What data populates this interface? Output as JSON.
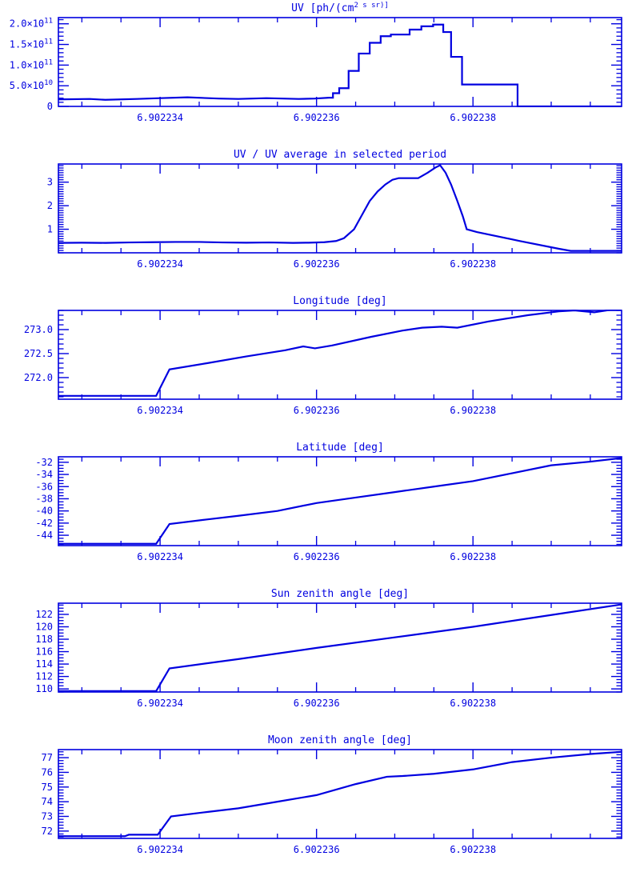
{
  "page": {
    "background": "#ffffff"
  },
  "style": {
    "plot_color": "#0000E0"
  },
  "x_axis": {
    "range": [
      6.9022327,
      6.9022399
    ],
    "major_ticks": [
      {
        "v": 6.902234,
        "label": "6.902234"
      },
      {
        "v": 6.902236,
        "label": "6.902236"
      },
      {
        "v": 6.902238,
        "label": "6.902238"
      }
    ],
    "minor_step": 5e-07,
    "grid": false,
    "legend": "none"
  },
  "chart_data": [
    {
      "type": "line",
      "title": "UV [ph/(cm^2 s sr)]",
      "xlabel": "",
      "ylabel": "",
      "y_axis": {
        "range": [
          0,
          215000000000.0
        ],
        "major_ticks": [
          {
            "v": 0,
            "label": "0"
          },
          {
            "v": 50000000000.0,
            "label": "5.0×10^10"
          },
          {
            "v": 100000000000.0,
            "label": "1.0×10^11"
          },
          {
            "v": 150000000000.0,
            "label": "1.5×10^11"
          },
          {
            "v": 200000000000.0,
            "label": "2.0×10^11"
          }
        ],
        "minor_step": 10000000000.0
      },
      "series": [
        {
          "name": "UV",
          "points": [
            [
              6.9022327,
              17000000000.0
            ],
            [
              6.9022331,
              18000000000.0
            ],
            [
              6.9022333,
              16000000000.0
            ],
            [
              6.9022337,
              18000000000.0
            ],
            [
              6.902234,
              20000000000.0
            ],
            [
              6.90223435,
              22000000000.0
            ],
            [
              6.90223475,
              19000000000.0
            ],
            [
              6.902235,
              18000000000.0
            ],
            [
              6.90223536,
              20000000000.0
            ],
            [
              6.90223577,
              18000000000.0
            ],
            [
              6.90223598,
              19000000000.0
            ],
            [
              6.90223616,
              21000000000.0
            ],
            [
              6.90223621,
              21000000000.0
            ],
            [
              6.90223621,
              32000000000.0
            ],
            [
              6.90223629,
              32000000000.0
            ],
            [
              6.90223629,
              44000000000.0
            ],
            [
              6.90223641,
              44000000000.0
            ],
            [
              6.90223641,
              86000000000.0
            ],
            [
              6.90223654,
              86000000000.0
            ],
            [
              6.90223654,
              128000000000.0
            ],
            [
              6.90223668,
              128000000000.0
            ],
            [
              6.90223668,
              154000000000.0
            ],
            [
              6.90223682,
              154000000000.0
            ],
            [
              6.90223682,
              170000000000.0
            ],
            [
              6.90223695,
              170000000000.0
            ],
            [
              6.90223695,
              174000000000.0
            ],
            [
              6.90223719,
              174000000000.0
            ],
            [
              6.90223719,
              186000000000.0
            ],
            [
              6.90223734,
              186000000000.0
            ],
            [
              6.90223734,
              194000000000.0
            ],
            [
              6.90223749,
              194000000000.0
            ],
            [
              6.90223749,
              198000000000.0
            ],
            [
              6.90223762,
              198000000000.0
            ],
            [
              6.90223762,
              180000000000.0
            ],
            [
              6.90223772,
              180000000000.0
            ],
            [
              6.90223772,
              120000000000.0
            ],
            [
              6.90223786,
              120000000000.0
            ],
            [
              6.90223786,
              53000000000.0
            ],
            [
              6.90223857,
              53000000000.0
            ],
            [
              6.90223857,
              0
            ],
            [
              6.9022399,
              0
            ]
          ]
        }
      ]
    },
    {
      "type": "line",
      "title": "UV / UV average in selected period",
      "xlabel": "",
      "ylabel": "",
      "y_axis": {
        "range": [
          0,
          3.77
        ],
        "major_ticks": [
          {
            "v": 1,
            "label": "1"
          },
          {
            "v": 2,
            "label": "2"
          },
          {
            "v": 3,
            "label": "3"
          }
        ],
        "minor_step": 0.1
      },
      "series": [
        {
          "name": "UV ratio",
          "points": [
            [
              6.9022327,
              0.42
            ],
            [
              6.902233,
              0.43
            ],
            [
              6.9022333,
              0.42
            ],
            [
              6.9022336,
              0.44
            ],
            [
              6.9022339,
              0.45
            ],
            [
              6.9022342,
              0.46
            ],
            [
              6.9022345,
              0.46
            ],
            [
              6.9022348,
              0.44
            ],
            [
              6.9022351,
              0.43
            ],
            [
              6.9022354,
              0.44
            ],
            [
              6.9022357,
              0.42
            ],
            [
              6.9022359,
              0.43
            ],
            [
              6.9022361,
              0.45
            ],
            [
              6.90223625,
              0.5
            ],
            [
              6.90223635,
              0.62
            ],
            [
              6.90223648,
              1.0
            ],
            [
              6.90223658,
              1.6
            ],
            [
              6.90223668,
              2.2
            ],
            [
              6.90223678,
              2.6
            ],
            [
              6.90223688,
              2.9
            ],
            [
              6.90223697,
              3.1
            ],
            [
              6.90223705,
              3.17
            ],
            [
              6.9022373,
              3.17
            ],
            [
              6.90223742,
              3.4
            ],
            [
              6.90223752,
              3.62
            ],
            [
              6.90223758,
              3.72
            ],
            [
              6.90223765,
              3.4
            ],
            [
              6.90223772,
              2.9
            ],
            [
              6.9022378,
              2.2
            ],
            [
              6.90223787,
              1.55
            ],
            [
              6.90223792,
              1.0
            ],
            [
              6.90223805,
              0.88
            ],
            [
              6.9022386,
              0.5
            ],
            [
              6.9022391,
              0.17
            ],
            [
              6.90223925,
              0.08
            ],
            [
              6.9022399,
              0.08
            ]
          ]
        }
      ]
    },
    {
      "type": "line",
      "title": "Longitude [deg]",
      "xlabel": "",
      "ylabel": "",
      "y_axis": {
        "range": [
          271.55,
          273.4
        ],
        "major_ticks": [
          {
            "v": 272.0,
            "label": "272.0"
          },
          {
            "v": 272.5,
            "label": "272.5"
          },
          {
            "v": 273.0,
            "label": "273.0"
          }
        ],
        "minor_step": 0.1
      },
      "series": [
        {
          "name": "Longitude",
          "points": [
            [
              6.9022327,
              271.62
            ],
            [
              6.90223395,
              271.62
            ],
            [
              6.90223412,
              272.17
            ],
            [
              6.9022346,
              272.3
            ],
            [
              6.9022351,
              272.44
            ],
            [
              6.9022356,
              272.57
            ],
            [
              6.90223583,
              272.65
            ],
            [
              6.90223598,
              272.61
            ],
            [
              6.9022362,
              272.67
            ],
            [
              6.9022367,
              272.85
            ],
            [
              6.9022371,
              272.98
            ],
            [
              6.90223735,
              273.04
            ],
            [
              6.9022376,
              273.06
            ],
            [
              6.9022378,
              273.04
            ],
            [
              6.9022382,
              273.17
            ],
            [
              6.9022387,
              273.3
            ],
            [
              6.9022391,
              273.38
            ],
            [
              6.9022393,
              273.4
            ],
            [
              6.90223955,
              273.36
            ],
            [
              6.90223975,
              273.41
            ],
            [
              6.9022399,
              273.42
            ]
          ]
        }
      ]
    },
    {
      "type": "line",
      "title": "Latitude [deg]",
      "xlabel": "",
      "ylabel": "",
      "y_axis": {
        "range": [
          -45.7,
          -31.1
        ],
        "major_ticks": [
          {
            "v": -44,
            "label": "-44"
          },
          {
            "v": -42,
            "label": "-42"
          },
          {
            "v": -40,
            "label": "-40"
          },
          {
            "v": -38,
            "label": "-38"
          },
          {
            "v": -36,
            "label": "-36"
          },
          {
            "v": -34,
            "label": "-34"
          },
          {
            "v": -32,
            "label": "-32"
          }
        ],
        "minor_step": 0.5
      },
      "series": [
        {
          "name": "Latitude",
          "points": [
            [
              6.9022327,
              -45.4
            ],
            [
              6.90223395,
              -45.4
            ],
            [
              6.90223412,
              -42.15
            ],
            [
              6.9022346,
              -41.4
            ],
            [
              6.902235,
              -40.8
            ],
            [
              6.9022355,
              -40.0
            ],
            [
              6.902236,
              -38.7
            ],
            [
              6.9022365,
              -37.8
            ],
            [
              6.902237,
              -36.9
            ],
            [
              6.9022375,
              -36.0
            ],
            [
              6.902238,
              -35.1
            ],
            [
              6.9022385,
              -33.8
            ],
            [
              6.902239,
              -32.5
            ],
            [
              6.9022395,
              -31.9
            ],
            [
              6.9022399,
              -31.3
            ]
          ]
        }
      ]
    },
    {
      "type": "line",
      "title": "Sun zenith angle [deg]",
      "xlabel": "",
      "ylabel": "",
      "y_axis": {
        "range": [
          109.5,
          123.8
        ],
        "major_ticks": [
          {
            "v": 110,
            "label": "110"
          },
          {
            "v": 112,
            "label": "112"
          },
          {
            "v": 114,
            "label": "114"
          },
          {
            "v": 116,
            "label": "116"
          },
          {
            "v": 118,
            "label": "118"
          },
          {
            "v": 120,
            "label": "120"
          },
          {
            "v": 122,
            "label": "122"
          }
        ],
        "minor_step": 0.5
      },
      "series": [
        {
          "name": "Sun zenith angle",
          "points": [
            [
              6.9022327,
              109.65
            ],
            [
              6.90223395,
              109.65
            ],
            [
              6.90223412,
              113.3
            ],
            [
              6.902235,
              114.8
            ],
            [
              6.902236,
              116.6
            ],
            [
              6.902237,
              118.3
            ],
            [
              6.902238,
              120.0
            ],
            [
              6.902239,
              121.9
            ],
            [
              6.9022399,
              123.6
            ]
          ]
        }
      ]
    },
    {
      "type": "line",
      "title": "Moon zenith angle [deg]",
      "xlabel": "",
      "ylabel": "",
      "y_axis": {
        "range": [
          71.5,
          77.55
        ],
        "major_ticks": [
          {
            "v": 72,
            "label": "72"
          },
          {
            "v": 73,
            "label": "73"
          },
          {
            "v": 74,
            "label": "74"
          },
          {
            "v": 75,
            "label": "75"
          },
          {
            "v": 76,
            "label": "76"
          },
          {
            "v": 77,
            "label": "77"
          }
        ],
        "minor_step": 0.2
      },
      "series": [
        {
          "name": "Moon zenith angle",
          "points": [
            [
              6.9022327,
              71.65
            ],
            [
              6.90223355,
              71.65
            ],
            [
              6.9022336,
              71.75
            ],
            [
              6.90223397,
              71.75
            ],
            [
              6.90223414,
              73.0
            ],
            [
              6.9022346,
              73.3
            ],
            [
              6.902235,
              73.55
            ],
            [
              6.9022355,
              74.0
            ],
            [
              6.902236,
              74.45
            ],
            [
              6.9022365,
              75.2
            ],
            [
              6.9022369,
              75.7
            ],
            [
              6.9022371,
              75.75
            ],
            [
              6.9022375,
              75.9
            ],
            [
              6.902238,
              76.2
            ],
            [
              6.9022385,
              76.7
            ],
            [
              6.902239,
              77.0
            ],
            [
              6.9022395,
              77.25
            ],
            [
              6.9022399,
              77.4
            ]
          ]
        }
      ]
    }
  ]
}
